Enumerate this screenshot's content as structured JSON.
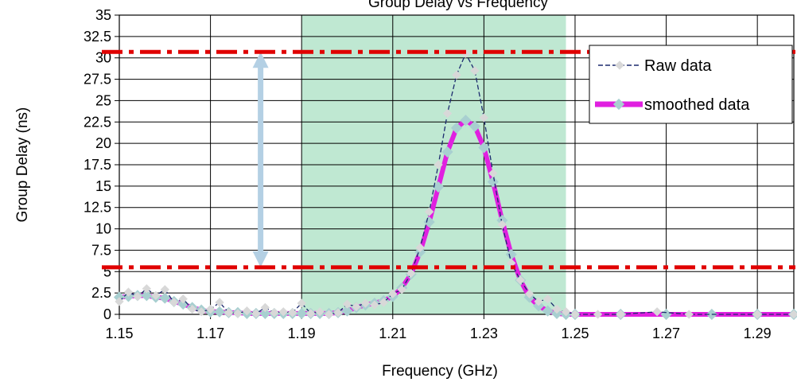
{
  "chart_data": {
    "type": "line",
    "title": "Group Delay vs Frequency",
    "xlabel": "Frequency (GHz)",
    "ylabel": "Group Delay (ns)",
    "xlim": [
      1.15,
      1.298
    ],
    "ylim": [
      0,
      35
    ],
    "x_ticks": [
      "1.15",
      "1.17",
      "1.19",
      "1.21",
      "1.23",
      "1.25",
      "1.27",
      "1.29"
    ],
    "y_ticks": [
      "0",
      "2.5",
      "5",
      "7.5",
      "10",
      "12.5",
      "15",
      "17.5",
      "20",
      "22.5",
      "25",
      "27.5",
      "30",
      "32.5",
      "35"
    ],
    "grid": true,
    "legend_position": "top-right",
    "highlight_band": {
      "x_start": 1.19,
      "x_end": 1.248,
      "color": "#bfe8d2"
    },
    "reference_lines": [
      {
        "y": 30.7,
        "style": "dash-dot",
        "color": "#e00000"
      },
      {
        "y": 5.5,
        "style": "dash-dot",
        "color": "#e00000"
      }
    ],
    "annotation_arrow": {
      "x": 1.181,
      "y_start": 5.5,
      "y_end": 30.7,
      "color": "#b4d0e4"
    },
    "series": [
      {
        "name": "Raw data",
        "color": "#1c2a6e",
        "marker_color": "#d8d8d8",
        "x": [
          1.15,
          1.152,
          1.154,
          1.156,
          1.158,
          1.16,
          1.162,
          1.164,
          1.166,
          1.168,
          1.17,
          1.172,
          1.174,
          1.176,
          1.178,
          1.18,
          1.182,
          1.184,
          1.186,
          1.188,
          1.19,
          1.192,
          1.194,
          1.196,
          1.198,
          1.2,
          1.202,
          1.204,
          1.206,
          1.208,
          1.21,
          1.212,
          1.214,
          1.216,
          1.218,
          1.22,
          1.222,
          1.224,
          1.226,
          1.228,
          1.23,
          1.232,
          1.234,
          1.236,
          1.238,
          1.24,
          1.242,
          1.244,
          1.246,
          1.248,
          1.25,
          1.255,
          1.26,
          1.268,
          1.275,
          1.29,
          1.298
        ],
        "y": [
          1.5,
          2.6,
          2.1,
          3.0,
          2.2,
          2.9,
          1.4,
          1.8,
          0.6,
          0.3,
          0.6,
          1.4,
          0.2,
          0.1,
          0.4,
          0.1,
          0.8,
          0.2,
          0.3,
          0.2,
          1.3,
          0.1,
          0.3,
          0.0,
          0.2,
          1.2,
          0.9,
          1.3,
          1.1,
          1.4,
          2.4,
          2.9,
          4.8,
          7.8,
          12.0,
          17.5,
          23.5,
          28.0,
          30.5,
          28.5,
          23.0,
          16.5,
          10.5,
          6.0,
          4.0,
          2.4,
          1.5,
          1.8,
          0.6,
          0.3,
          0.0,
          0.0,
          0.0,
          0.3,
          0.0,
          0.0,
          0.0
        ]
      },
      {
        "name": "smoothed data",
        "color": "#e020e0",
        "marker_color": "#a8cfd0",
        "x": [
          1.15,
          1.152,
          1.154,
          1.156,
          1.158,
          1.16,
          1.162,
          1.164,
          1.166,
          1.168,
          1.17,
          1.172,
          1.174,
          1.176,
          1.178,
          1.18,
          1.182,
          1.184,
          1.186,
          1.188,
          1.19,
          1.192,
          1.194,
          1.196,
          1.198,
          1.2,
          1.202,
          1.204,
          1.206,
          1.208,
          1.21,
          1.212,
          1.214,
          1.216,
          1.218,
          1.22,
          1.222,
          1.224,
          1.226,
          1.228,
          1.23,
          1.232,
          1.234,
          1.236,
          1.238,
          1.24,
          1.242,
          1.244,
          1.246,
          1.248,
          1.25,
          1.26,
          1.27,
          1.28,
          1.29,
          1.298
        ],
        "y": [
          2.0,
          2.1,
          2.2,
          2.2,
          2.0,
          1.9,
          1.5,
          1.2,
          0.8,
          0.5,
          0.3,
          0.3,
          0.2,
          0.2,
          0.1,
          0.1,
          0.1,
          0.1,
          0.1,
          0.1,
          0.1,
          0.1,
          0.1,
          0.1,
          0.2,
          0.4,
          0.8,
          1.1,
          1.3,
          1.6,
          2.1,
          3.1,
          4.7,
          7.3,
          10.8,
          14.9,
          19.0,
          21.8,
          22.7,
          22.0,
          19.5,
          15.5,
          11.0,
          7.0,
          4.0,
          2.0,
          1.0,
          0.4,
          0.1,
          0.0,
          0.0,
          0.0,
          0.0,
          0.0,
          0.0,
          0.0
        ]
      }
    ]
  }
}
